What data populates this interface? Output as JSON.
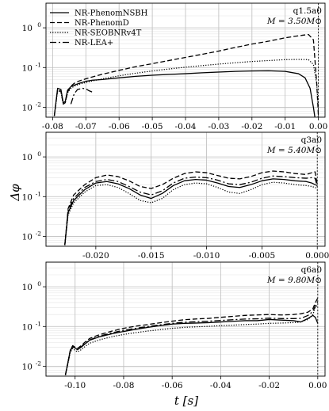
{
  "figure": {
    "ylabel": "Δφ",
    "xlabel": "t [s]"
  },
  "chart_data": [
    {
      "type": "line",
      "annotation": [
        "q1.5a0",
        "M = 3.50M⊙"
      ],
      "xlim": [
        -0.082,
        0.002
      ],
      "ylim_log10": [
        -2.25,
        0.62
      ],
      "yscale": "log",
      "x_ticks": [
        -0.08,
        -0.07,
        -0.06,
        -0.05,
        -0.04,
        -0.03,
        -0.02,
        -0.01,
        0.0
      ],
      "x_tick_labels": [
        "-0.08",
        "-0.07",
        "-0.06",
        "-0.05",
        "-0.04",
        "-0.03",
        "-0.02",
        "-0.01",
        "0.00"
      ],
      "y_ticks": [
        0.01,
        0.1,
        1
      ],
      "y_tick_labels": [
        "10",
        "10",
        "10"
      ],
      "y_tick_exps": [
        "-2",
        "-1",
        "0"
      ],
      "grid": true,
      "legend_position": "top-left",
      "series": [
        {
          "name": "NR-PhenomNSBH",
          "style": "solid",
          "x": [
            -0.0795,
            -0.0785,
            -0.0775,
            -0.0768,
            -0.0762,
            -0.0755,
            -0.0745,
            -0.0735,
            -0.072,
            -0.07,
            -0.068,
            -0.065,
            -0.06,
            -0.055,
            -0.05,
            -0.045,
            -0.04,
            -0.035,
            -0.03,
            -0.025,
            -0.02,
            -0.015,
            -0.01,
            -0.006,
            -0.004,
            -0.0025,
            -0.0015,
            -0.0008,
            0.0
          ],
          "y": [
            0.006,
            0.03,
            0.028,
            0.013,
            0.014,
            0.027,
            0.033,
            0.036,
            0.04,
            0.045,
            0.048,
            0.05,
            0.055,
            0.06,
            0.064,
            0.067,
            0.07,
            0.074,
            0.077,
            0.08,
            0.082,
            0.083,
            0.08,
            0.07,
            0.055,
            0.03,
            0.01,
            0.004,
            0.006
          ]
        },
        {
          "name": "NR-PhenomD",
          "style": "dashed",
          "x": [
            -0.0795,
            -0.0785,
            -0.0775,
            -0.0768,
            -0.0762,
            -0.0755,
            -0.0745,
            -0.0735,
            -0.072,
            -0.07,
            -0.068,
            -0.065,
            -0.06,
            -0.055,
            -0.05,
            -0.045,
            -0.04,
            -0.035,
            -0.03,
            -0.025,
            -0.02,
            -0.015,
            -0.01,
            -0.006,
            -0.003,
            -0.0015,
            -0.0005,
            0.0
          ],
          "y": [
            0.006,
            0.028,
            0.025,
            0.012,
            0.013,
            0.024,
            0.034,
            0.04,
            0.046,
            0.052,
            0.058,
            0.068,
            0.085,
            0.105,
            0.125,
            0.15,
            0.18,
            0.215,
            0.26,
            0.32,
            0.39,
            0.46,
            0.56,
            0.63,
            0.68,
            0.5,
            0.04,
            0.006
          ]
        },
        {
          "name": "NR-SEOBNRv4T",
          "style": "dotted",
          "x": [
            -0.0795,
            -0.0785,
            -0.0775,
            -0.0768,
            -0.0762,
            -0.0755,
            -0.0745,
            -0.0735,
            -0.072,
            -0.07,
            -0.068,
            -0.065,
            -0.06,
            -0.055,
            -0.05,
            -0.045,
            -0.04,
            -0.035,
            -0.03,
            -0.025,
            -0.02,
            -0.015,
            -0.01,
            -0.006,
            -0.003,
            -0.0015,
            -0.0005,
            0.0
          ],
          "y": [
            0.006,
            0.026,
            0.024,
            0.012,
            0.013,
            0.023,
            0.03,
            0.034,
            0.038,
            0.042,
            0.046,
            0.052,
            0.062,
            0.072,
            0.082,
            0.092,
            0.102,
            0.112,
            0.122,
            0.132,
            0.142,
            0.15,
            0.158,
            0.16,
            0.158,
            0.12,
            0.04,
            0.008
          ]
        },
        {
          "name": "NR-LEA+",
          "style": "dashdot",
          "x": [
            -0.0745,
            -0.0735,
            -0.0725,
            -0.071,
            -0.07,
            -0.069,
            -0.068
          ],
          "y": [
            0.012,
            0.022,
            0.028,
            0.03,
            0.029,
            0.026,
            0.024
          ]
        }
      ]
    },
    {
      "type": "line",
      "annotation": [
        "q3a0",
        "M = 5.40M⊙"
      ],
      "xlim": [
        -0.0245,
        0.0007
      ],
      "ylim_log10": [
        -2.25,
        0.62
      ],
      "yscale": "log",
      "x_ticks": [
        -0.02,
        -0.015,
        -0.01,
        -0.005,
        0.0
      ],
      "x_tick_labels": [
        "-0.020",
        "-0.015",
        "-0.010",
        "-0.005",
        "0.000"
      ],
      "y_ticks": [
        0.01,
        0.1,
        1
      ],
      "y_tick_labels": [
        "10",
        "10",
        "10"
      ],
      "y_tick_exps": [
        "-2",
        "-1",
        "0"
      ],
      "grid": true,
      "series": [
        {
          "name": "NR-PhenomNSBH",
          "style": "solid",
          "x": [
            -0.0228,
            -0.0225,
            -0.022,
            -0.021,
            -0.02,
            -0.019,
            -0.018,
            -0.017,
            -0.016,
            -0.015,
            -0.014,
            -0.013,
            -0.012,
            -0.011,
            -0.01,
            -0.009,
            -0.008,
            -0.007,
            -0.006,
            -0.005,
            -0.004,
            -0.003,
            -0.002,
            -0.001,
            -0.0005,
            -0.0002,
            0.0
          ],
          "y": [
            0.006,
            0.04,
            0.08,
            0.15,
            0.22,
            0.24,
            0.21,
            0.16,
            0.11,
            0.09,
            0.12,
            0.19,
            0.25,
            0.27,
            0.26,
            0.22,
            0.18,
            0.17,
            0.2,
            0.25,
            0.28,
            0.27,
            0.25,
            0.24,
            0.22,
            0.2,
            0.19
          ]
        },
        {
          "name": "NR-PhenomD",
          "style": "dashed",
          "x": [
            -0.0228,
            -0.0225,
            -0.022,
            -0.021,
            -0.02,
            -0.019,
            -0.018,
            -0.017,
            -0.016,
            -0.015,
            -0.014,
            -0.013,
            -0.012,
            -0.011,
            -0.01,
            -0.009,
            -0.008,
            -0.007,
            -0.006,
            -0.005,
            -0.004,
            -0.003,
            -0.002,
            -0.001,
            -0.0005,
            -0.0002,
            0.0
          ],
          "y": [
            0.006,
            0.05,
            0.11,
            0.2,
            0.3,
            0.35,
            0.32,
            0.25,
            0.18,
            0.16,
            0.2,
            0.29,
            0.38,
            0.42,
            0.4,
            0.34,
            0.29,
            0.28,
            0.32,
            0.4,
            0.44,
            0.42,
            0.38,
            0.36,
            0.4,
            0.42,
            0.2
          ]
        },
        {
          "name": "NR-SEOBNRv4T",
          "style": "dotted",
          "x": [
            -0.0228,
            -0.0225,
            -0.022,
            -0.021,
            -0.02,
            -0.019,
            -0.018,
            -0.017,
            -0.016,
            -0.015,
            -0.014,
            -0.013,
            -0.012,
            -0.011,
            -0.01,
            -0.009,
            -0.008,
            -0.007,
            -0.006,
            -0.005,
            -0.004,
            -0.003,
            -0.002,
            -0.001,
            -0.0005,
            -0.0002,
            0.0
          ],
          "y": [
            0.006,
            0.035,
            0.07,
            0.13,
            0.19,
            0.2,
            0.17,
            0.12,
            0.08,
            0.07,
            0.09,
            0.15,
            0.2,
            0.22,
            0.21,
            0.17,
            0.13,
            0.12,
            0.15,
            0.2,
            0.23,
            0.22,
            0.2,
            0.19,
            0.18,
            0.17,
            0.16
          ]
        },
        {
          "name": "NR-LEA+",
          "style": "dashdot",
          "x": [
            -0.0228,
            -0.0225,
            -0.022,
            -0.021,
            -0.02,
            -0.019,
            -0.018,
            -0.017,
            -0.016,
            -0.015,
            -0.014,
            -0.013,
            -0.012,
            -0.011,
            -0.01,
            -0.009,
            -0.008,
            -0.007,
            -0.006,
            -0.005,
            -0.004,
            -0.003,
            -0.002,
            -0.001,
            -0.0005,
            -0.0002,
            0.0
          ],
          "y": [
            0.006,
            0.045,
            0.09,
            0.17,
            0.24,
            0.27,
            0.24,
            0.18,
            0.13,
            0.11,
            0.14,
            0.22,
            0.29,
            0.31,
            0.3,
            0.26,
            0.21,
            0.2,
            0.23,
            0.29,
            0.33,
            0.32,
            0.3,
            0.29,
            0.3,
            0.29,
            0.18
          ]
        }
      ]
    },
    {
      "type": "line",
      "annotation": [
        "q6a0",
        "M = 9.80M⊙"
      ],
      "xlim": [
        -0.112,
        0.003
      ],
      "ylim_log10": [
        -2.25,
        0.62
      ],
      "yscale": "log",
      "x_ticks": [
        -0.1,
        -0.08,
        -0.06,
        -0.04,
        -0.02,
        0.0
      ],
      "x_tick_labels": [
        "-0.10",
        "-0.08",
        "-0.06",
        "-0.04",
        "-0.02",
        "0.00"
      ],
      "y_ticks": [
        0.01,
        0.1,
        1
      ],
      "y_tick_labels": [
        "10",
        "10",
        "10"
      ],
      "y_tick_exps": [
        "-2",
        "-1",
        "0"
      ],
      "grid": true,
      "series": [
        {
          "name": "NR-PhenomNSBH",
          "style": "solid",
          "x": [
            -0.104,
            -0.103,
            -0.102,
            -0.101,
            -0.1,
            -0.099,
            -0.0975,
            -0.096,
            -0.094,
            -0.09,
            -0.085,
            -0.08,
            -0.075,
            -0.07,
            -0.065,
            -0.06,
            -0.055,
            -0.05,
            -0.045,
            -0.04,
            -0.035,
            -0.03,
            -0.025,
            -0.02,
            -0.015,
            -0.01,
            -0.007,
            -0.004,
            -0.002,
            -0.001,
            0.0
          ],
          "y": [
            0.006,
            0.012,
            0.025,
            0.032,
            0.029,
            0.026,
            0.03,
            0.036,
            0.045,
            0.055,
            0.065,
            0.075,
            0.085,
            0.095,
            0.105,
            0.115,
            0.12,
            0.122,
            0.125,
            0.13,
            0.135,
            0.14,
            0.14,
            0.15,
            0.145,
            0.14,
            0.13,
            0.16,
            0.19,
            0.17,
            0.12
          ]
        },
        {
          "name": "NR-PhenomD",
          "style": "dashed",
          "x": [
            -0.104,
            -0.103,
            -0.102,
            -0.101,
            -0.1,
            -0.099,
            -0.0975,
            -0.096,
            -0.094,
            -0.09,
            -0.085,
            -0.08,
            -0.075,
            -0.07,
            -0.065,
            -0.06,
            -0.055,
            -0.05,
            -0.045,
            -0.04,
            -0.035,
            -0.03,
            -0.025,
            -0.02,
            -0.015,
            -0.01,
            -0.007,
            -0.004,
            -0.002,
            -0.001,
            0.0
          ],
          "y": [
            0.006,
            0.012,
            0.025,
            0.033,
            0.03,
            0.028,
            0.033,
            0.04,
            0.05,
            0.062,
            0.076,
            0.09,
            0.102,
            0.112,
            0.124,
            0.136,
            0.148,
            0.155,
            0.16,
            0.17,
            0.18,
            0.19,
            0.195,
            0.2,
            0.195,
            0.2,
            0.21,
            0.23,
            0.28,
            0.4,
            0.52
          ]
        },
        {
          "name": "NR-SEOBNRv4T",
          "style": "dotted",
          "x": [
            -0.104,
            -0.103,
            -0.102,
            -0.101,
            -0.1,
            -0.099,
            -0.0975,
            -0.096,
            -0.094,
            -0.09,
            -0.085,
            -0.08,
            -0.075,
            -0.07,
            -0.065,
            -0.06,
            -0.055,
            -0.05,
            -0.045,
            -0.04,
            -0.035,
            -0.03,
            -0.025,
            -0.02,
            -0.015,
            -0.01,
            -0.007,
            -0.004,
            -0.002,
            -0.001,
            0.0
          ],
          "y": [
            0.006,
            0.011,
            0.022,
            0.028,
            0.025,
            0.023,
            0.026,
            0.031,
            0.038,
            0.046,
            0.055,
            0.063,
            0.07,
            0.077,
            0.083,
            0.09,
            0.095,
            0.098,
            0.101,
            0.105,
            0.108,
            0.112,
            0.115,
            0.12,
            0.122,
            0.125,
            0.13,
            0.15,
            0.2,
            0.3,
            0.35
          ]
        },
        {
          "name": "NR-LEA+",
          "style": "dashdot",
          "x": [
            -0.104,
            -0.103,
            -0.102,
            -0.101,
            -0.1,
            -0.099,
            -0.0975,
            -0.096,
            -0.094,
            -0.09,
            -0.085,
            -0.08,
            -0.075,
            -0.07,
            -0.065,
            -0.06,
            -0.055,
            -0.05,
            -0.045,
            -0.04,
            -0.035,
            -0.03,
            -0.025,
            -0.02,
            -0.015,
            -0.01,
            -0.007,
            -0.004,
            -0.002,
            -0.001,
            0.0
          ],
          "y": [
            0.006,
            0.012,
            0.024,
            0.031,
            0.028,
            0.026,
            0.031,
            0.037,
            0.046,
            0.057,
            0.069,
            0.08,
            0.09,
            0.1,
            0.11,
            0.12,
            0.128,
            0.132,
            0.136,
            0.142,
            0.148,
            0.154,
            0.156,
            0.162,
            0.158,
            0.158,
            0.16,
            0.19,
            0.24,
            0.33,
            0.42
          ]
        }
      ]
    }
  ]
}
